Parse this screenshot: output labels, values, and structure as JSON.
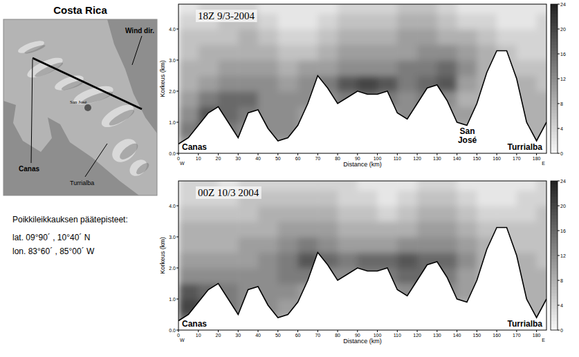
{
  "map": {
    "title": "Costa Rica",
    "labels": {
      "wind": "Wind dir.",
      "san_jose": "San José",
      "canas": "Canas",
      "turrialba": "Turrialba"
    }
  },
  "caption": {
    "heading": "Poikkileikkauksen päätepisteet:",
    "lines": [
      "lat. 09°90´ ,  10°40´ N",
      "lon. 83°60´ ,  85°00´ W"
    ]
  },
  "chart_data": [
    {
      "type": "contour",
      "title": "18Z  9/3-2004",
      "xlabel": "Distance (km)",
      "ylabel": "Korkeus (km)",
      "xlim": [
        0,
        185
      ],
      "xticks": [
        0,
        10,
        20,
        30,
        40,
        50,
        60,
        70,
        80,
        90,
        100,
        110,
        120,
        130,
        140,
        150,
        160,
        170,
        180
      ],
      "ylim": [
        0,
        4.8
      ],
      "yticks": [
        {
          "value": 0,
          "label": "0.0"
        },
        {
          "value": 1,
          "label": "1.0"
        },
        {
          "value": 2,
          "label": "2.0"
        },
        {
          "value": 3,
          "label": "3.0"
        },
        {
          "value": 4,
          "label": "4.0"
        }
      ],
      "direction_labels": [
        "W",
        "E"
      ],
      "annotations": {
        "west": "Canas",
        "middle": "San José",
        "east": "Turrialba"
      },
      "terrain_x": [
        0,
        5,
        10,
        15,
        20,
        25,
        30,
        35,
        40,
        45,
        50,
        55,
        60,
        65,
        70,
        75,
        80,
        85,
        90,
        95,
        100,
        105,
        110,
        115,
        120,
        125,
        130,
        135,
        140,
        145,
        150,
        155,
        160,
        165,
        170,
        175,
        180,
        185
      ],
      "terrain": [
        0.3,
        0.5,
        0.9,
        1.3,
        1.5,
        1.0,
        0.5,
        1.3,
        1.4,
        0.8,
        0.4,
        0.5,
        0.9,
        1.6,
        2.5,
        2.1,
        1.6,
        1.8,
        2.0,
        1.9,
        1.9,
        2.0,
        1.3,
        1.1,
        1.6,
        2.1,
        2.2,
        1.7,
        1.0,
        0.9,
        1.6,
        2.6,
        3.3,
        3.3,
        2.4,
        1.0,
        0.4,
        1.0
      ],
      "grid_x": [
        5,
        15,
        25,
        35,
        45,
        55,
        65,
        75,
        85,
        95,
        105,
        115,
        125,
        135,
        145,
        155,
        165,
        175,
        185
      ],
      "grid_y": [
        0.25,
        0.75,
        1.25,
        1.75,
        2.25,
        2.75,
        3.25,
        3.75,
        4.25,
        4.75
      ],
      "cells": [
        [
          10,
          14,
          12,
          10,
          10,
          10,
          10,
          8,
          8,
          8,
          8,
          8,
          8,
          8,
          8,
          8,
          8,
          8,
          8
        ],
        [
          14,
          18,
          14,
          12,
          12,
          12,
          10,
          10,
          10,
          10,
          10,
          10,
          10,
          8,
          8,
          8,
          8,
          8,
          8
        ],
        [
          12,
          18,
          16,
          14,
          12,
          12,
          10,
          10,
          10,
          10,
          10,
          12,
          12,
          10,
          10,
          8,
          8,
          8,
          8
        ],
        [
          10,
          14,
          16,
          16,
          12,
          12,
          12,
          12,
          14,
          16,
          14,
          12,
          14,
          12,
          8,
          8,
          8,
          8,
          8
        ],
        [
          8,
          10,
          12,
          12,
          12,
          10,
          12,
          14,
          18,
          20,
          18,
          14,
          16,
          18,
          10,
          8,
          8,
          8,
          6
        ],
        [
          8,
          8,
          10,
          10,
          10,
          8,
          10,
          10,
          12,
          12,
          12,
          14,
          14,
          16,
          12,
          8,
          6,
          6,
          6
        ],
        [
          6,
          8,
          8,
          8,
          8,
          6,
          6,
          8,
          10,
          10,
          10,
          10,
          12,
          12,
          10,
          8,
          6,
          4,
          4
        ],
        [
          6,
          6,
          6,
          8,
          6,
          4,
          4,
          6,
          8,
          8,
          8,
          10,
          10,
          8,
          8,
          6,
          4,
          4,
          4
        ],
        [
          4,
          4,
          6,
          6,
          4,
          2,
          2,
          4,
          6,
          6,
          6,
          8,
          8,
          6,
          4,
          4,
          2,
          2,
          4
        ],
        [
          2,
          4,
          4,
          4,
          2,
          2,
          2,
          2,
          4,
          4,
          4,
          6,
          6,
          4,
          2,
          2,
          2,
          2,
          2
        ]
      ],
      "colorbar": {
        "range": [
          0,
          24
        ],
        "ticks": [
          0,
          4,
          8,
          12,
          16,
          20,
          24
        ]
      }
    },
    {
      "type": "contour",
      "title": "00Z  10/3 2004",
      "xlabel": "Distance (km)",
      "ylabel": "Korkeus (km)",
      "xlim": [
        0,
        185
      ],
      "xticks": [
        0,
        10,
        20,
        30,
        40,
        50,
        60,
        70,
        80,
        90,
        100,
        110,
        120,
        130,
        140,
        150,
        160,
        170,
        180
      ],
      "ylim": [
        0,
        4.8
      ],
      "yticks": [
        {
          "value": 0,
          "label": "0.0"
        },
        {
          "value": 1,
          "label": "1.0"
        },
        {
          "value": 2,
          "label": "2.0"
        },
        {
          "value": 3,
          "label": "3.0"
        },
        {
          "value": 4,
          "label": "4.0"
        }
      ],
      "direction_labels": [
        "W",
        "E"
      ],
      "annotations": {
        "west": "Canas",
        "east": "Turrialba"
      },
      "terrain_x": [
        0,
        5,
        10,
        15,
        20,
        25,
        30,
        35,
        40,
        45,
        50,
        55,
        60,
        65,
        70,
        75,
        80,
        85,
        90,
        95,
        100,
        105,
        110,
        115,
        120,
        125,
        130,
        135,
        140,
        145,
        150,
        155,
        160,
        165,
        170,
        175,
        180,
        185
      ],
      "terrain": [
        0.3,
        0.5,
        0.9,
        1.3,
        1.5,
        1.0,
        0.5,
        1.3,
        1.4,
        0.8,
        0.4,
        0.5,
        0.9,
        1.6,
        2.5,
        2.1,
        1.6,
        1.8,
        2.0,
        1.9,
        1.9,
        2.0,
        1.3,
        1.1,
        1.6,
        2.1,
        2.2,
        1.7,
        1.0,
        0.9,
        1.6,
        2.6,
        3.3,
        3.3,
        2.4,
        1.0,
        0.4,
        1.0
      ],
      "grid_x": [
        5,
        15,
        25,
        35,
        45,
        55,
        65,
        75,
        85,
        95,
        105,
        115,
        125,
        135,
        145,
        155,
        165,
        175,
        185
      ],
      "grid_y": [
        0.25,
        0.75,
        1.25,
        1.75,
        2.25,
        2.75,
        3.25,
        3.75,
        4.25,
        4.75
      ],
      "cells": [
        [
          16,
          14,
          12,
          10,
          10,
          8,
          8,
          8,
          8,
          8,
          8,
          8,
          8,
          8,
          8,
          8,
          8,
          8,
          8
        ],
        [
          20,
          18,
          14,
          12,
          12,
          10,
          10,
          10,
          10,
          10,
          10,
          10,
          10,
          8,
          8,
          8,
          8,
          8,
          8
        ],
        [
          18,
          16,
          14,
          12,
          12,
          12,
          10,
          10,
          10,
          10,
          10,
          12,
          14,
          12,
          10,
          8,
          8,
          8,
          8
        ],
        [
          12,
          12,
          12,
          12,
          12,
          14,
          14,
          12,
          12,
          14,
          14,
          16,
          16,
          14,
          10,
          8,
          8,
          8,
          8
        ],
        [
          10,
          10,
          10,
          10,
          12,
          14,
          18,
          16,
          14,
          16,
          16,
          18,
          16,
          16,
          12,
          8,
          8,
          8,
          6
        ],
        [
          8,
          8,
          8,
          10,
          10,
          12,
          14,
          12,
          10,
          10,
          10,
          12,
          12,
          12,
          10,
          8,
          6,
          6,
          6
        ],
        [
          8,
          8,
          8,
          8,
          8,
          10,
          10,
          10,
          8,
          8,
          8,
          8,
          10,
          10,
          8,
          6,
          6,
          6,
          6
        ],
        [
          6,
          6,
          6,
          6,
          8,
          8,
          8,
          8,
          6,
          6,
          4,
          6,
          8,
          8,
          6,
          4,
          4,
          4,
          6
        ],
        [
          4,
          4,
          4,
          6,
          6,
          6,
          6,
          6,
          4,
          4,
          2,
          4,
          6,
          6,
          4,
          2,
          2,
          4,
          4
        ],
        [
          4,
          4,
          2,
          4,
          4,
          4,
          4,
          4,
          4,
          2,
          2,
          2,
          4,
          4,
          2,
          2,
          2,
          2,
          4
        ]
      ],
      "colorbar": {
        "range": [
          0,
          24
        ],
        "ticks": [
          0,
          4,
          8,
          12,
          16,
          20,
          24
        ]
      }
    }
  ]
}
